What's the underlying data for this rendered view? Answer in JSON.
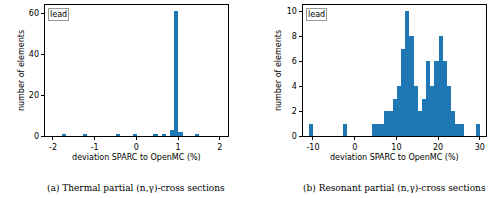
{
  "chart_data": [
    {
      "type": "histogram",
      "caption": "(a) Thermal partial (n,γ)-cross sections",
      "annotation": "lead",
      "x_label": "deviation SPARC to OpenMC (%)",
      "y_label": "number of elements",
      "bins": [
        -1.8,
        -1.7,
        -1.6,
        -1.5,
        -1.4,
        -1.3,
        -1.2,
        -1.1,
        -1.0,
        -0.9,
        -0.8,
        -0.7,
        -0.6,
        -0.5,
        -0.4,
        -0.3,
        -0.2,
        -0.1,
        0.0,
        0.1,
        0.2,
        0.3,
        0.4,
        0.5,
        0.6,
        0.7,
        0.8,
        0.9,
        1.0,
        1.1,
        1.2,
        1.3,
        1.4,
        1.5,
        1.6
      ],
      "values": [
        1,
        0,
        0,
        0,
        0,
        1,
        0,
        0,
        0,
        0,
        0,
        0,
        0,
        1,
        0,
        0,
        0,
        1,
        0,
        0,
        0,
        0,
        1,
        0,
        1,
        0,
        3,
        61,
        2,
        0,
        0,
        0,
        1,
        0
      ],
      "color": "#1f77b4",
      "xlim": [
        -2.2,
        2.2
      ],
      "xticks": [
        -2,
        -1,
        0,
        1,
        2
      ],
      "ylim": [
        0,
        64
      ],
      "yticks": [
        0,
        20,
        40,
        60
      ],
      "grid": false
    },
    {
      "type": "histogram",
      "caption": "(b) Resonant partial (n,γ)-cross sections",
      "annotation": "lead",
      "x_label": "deviation SPARC to OpenMC (%)",
      "y_label": "number of elements",
      "bins": [
        -11,
        -10,
        -9,
        -8,
        -7,
        -6,
        -5,
        -4,
        -3,
        -2,
        -1,
        0,
        1,
        2,
        3,
        4,
        5,
        6,
        7,
        8,
        9,
        10,
        11,
        12,
        13,
        14,
        15,
        16,
        17,
        18,
        19,
        20,
        21,
        22,
        23,
        24,
        25,
        26,
        27,
        28,
        29,
        30,
        31
      ],
      "values": [
        1,
        0,
        0,
        0,
        0,
        0,
        0,
        0,
        1,
        0,
        0,
        0,
        0,
        0,
        0,
        1,
        1,
        1,
        2,
        2,
        3,
        4,
        7,
        10,
        8,
        4,
        2,
        3,
        6,
        4,
        6,
        8,
        6,
        4,
        2,
        1,
        1,
        0,
        0,
        0,
        1,
        0
      ],
      "color": "#1f77b4",
      "xlim": [
        -12.5,
        31.5
      ],
      "xticks": [
        -10,
        0,
        10,
        20,
        30
      ],
      "ylim": [
        0,
        10.5
      ],
      "yticks": [
        0,
        2,
        4,
        6,
        8,
        10
      ],
      "grid": false
    }
  ]
}
